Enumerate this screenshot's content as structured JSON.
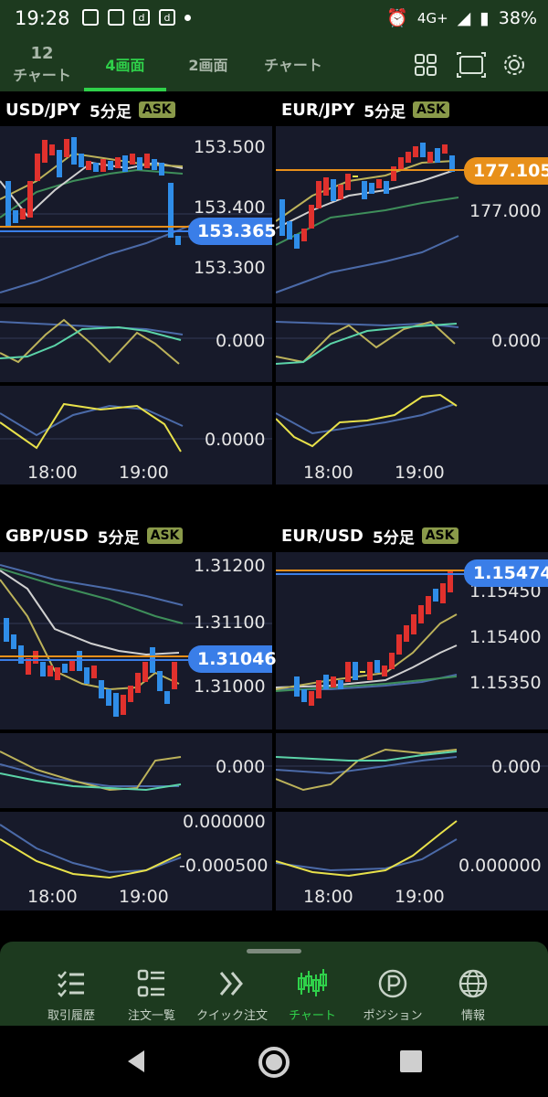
{
  "status": {
    "time": "19:28",
    "battery": "38%",
    "network": "4G+"
  },
  "topbar": {
    "tabs": [
      {
        "label": "12",
        "sublabel": "チャート"
      },
      {
        "label": "4画面"
      },
      {
        "label": "2画面"
      },
      {
        "label": "チャート"
      }
    ],
    "active_tab": 1,
    "icons": [
      "grid-icon",
      "screen-icon",
      "settings-icon"
    ]
  },
  "panels": [
    {
      "pair": "USD/JPY",
      "timeframe": "5分足",
      "badge": "ASK",
      "price_labels": [
        "153.500",
        "153.400",
        "153.300"
      ],
      "current_price": "153.365",
      "current_color": "#3a7ee8",
      "osc1_label": "0.000",
      "osc2_label": "0.0000",
      "times": [
        "18:00",
        "19:00"
      ]
    },
    {
      "pair": "EUR/JPY",
      "timeframe": "5分足",
      "badge": "ASK",
      "price_labels": [
        "177.000"
      ],
      "current_price": "177.105",
      "current_color": "#e8901a",
      "osc1_label": "0.000",
      "osc2_label": "",
      "times": [
        "18:00",
        "19:00"
      ]
    },
    {
      "pair": "GBP/USD",
      "timeframe": "5分足",
      "badge": "ASK",
      "price_labels": [
        "1.31200",
        "1.31100",
        "1.31000"
      ],
      "current_price": "1.31046",
      "current_color": "#3a7ee8",
      "osc1_label": "0.000",
      "osc2_labels": [
        "0.000000",
        "-0.000500"
      ],
      "times": [
        "18:00",
        "19:00"
      ]
    },
    {
      "pair": "EUR/USD",
      "timeframe": "5分足",
      "badge": "ASK",
      "price_labels": [
        "1.15450",
        "1.15400",
        "1.15350"
      ],
      "current_price": "1.15474",
      "current_color": "#3a7ee8",
      "osc1_label": "0.000",
      "osc2_label": "0.000000",
      "times": [
        "18:00",
        "19:00"
      ]
    }
  ],
  "bottom_nav": {
    "items": [
      {
        "label": "取引履歴",
        "icon": "checklist-icon"
      },
      {
        "label": "注文一覧",
        "icon": "list-icon"
      },
      {
        "label": "クイック注文",
        "icon": "double-chevron-icon"
      },
      {
        "label": "チャート",
        "icon": "candlestick-icon"
      },
      {
        "label": "ポジション",
        "icon": "position-icon"
      },
      {
        "label": "情報",
        "icon": "globe-icon"
      }
    ],
    "active": 3
  },
  "colors": {
    "up": "#e0312d",
    "down": "#2f8de8",
    "accent": "#2fd14a"
  }
}
